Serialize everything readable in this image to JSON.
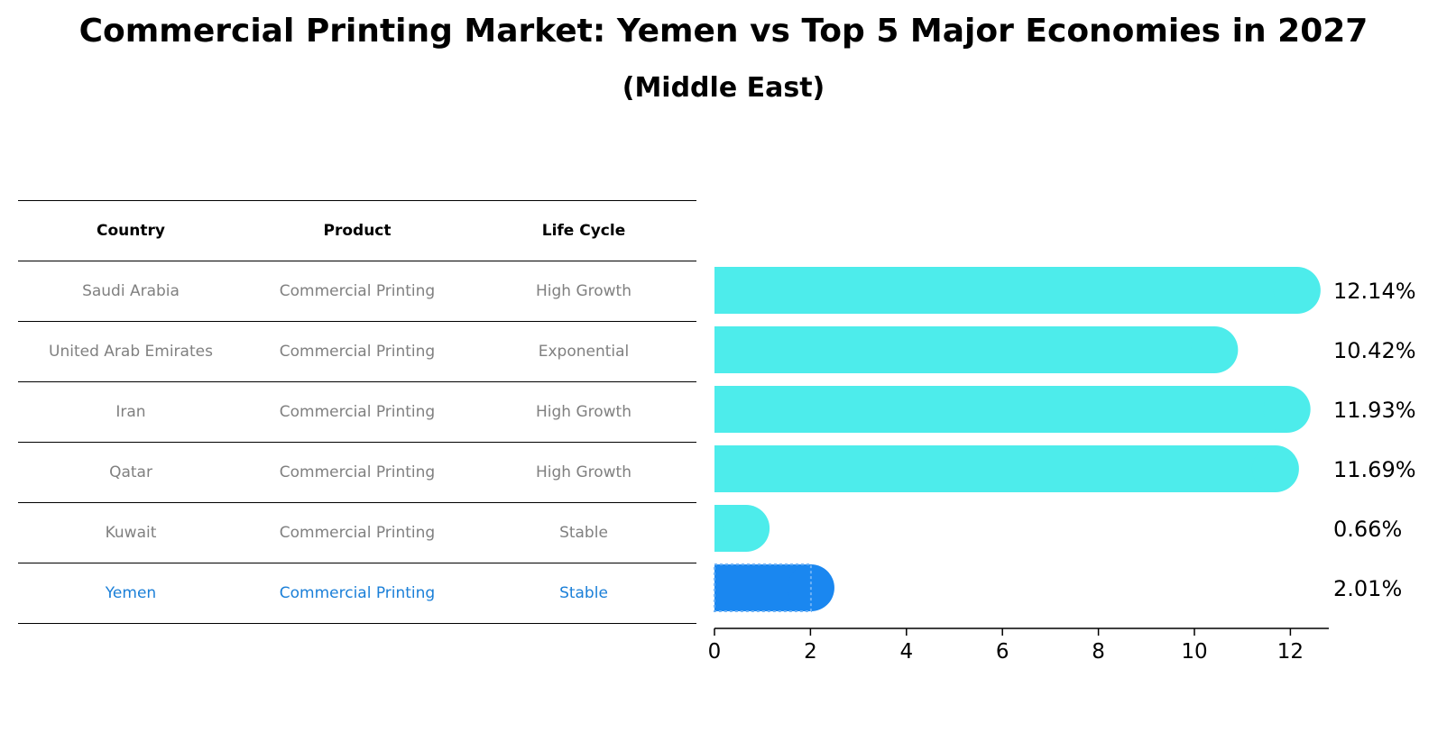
{
  "title": "Commercial Printing Market: Yemen vs Top 5 Major Economies in 2027",
  "subtitle": "(Middle East)",
  "colors": {
    "bar": "#4deceb",
    "highlight": "#1a87f0",
    "highlight_text": "#1a7fd8",
    "muted_text": "#808080"
  },
  "table": {
    "headers": [
      "Country",
      "Product",
      "Life Cycle"
    ],
    "rows": [
      [
        "Saudi Arabia",
        "Commercial Printing",
        "High Growth"
      ],
      [
        "United Arab Emirates",
        "Commercial Printing",
        "Exponential"
      ],
      [
        "Iran",
        "Commercial Printing",
        "High Growth"
      ],
      [
        "Qatar",
        "Commercial Printing",
        "High Growth"
      ],
      [
        "Kuwait",
        "Commercial Printing",
        "Stable"
      ],
      [
        "Yemen",
        "Commercial Printing",
        "Stable"
      ]
    ]
  },
  "chart_data": {
    "type": "bar",
    "orientation": "horizontal",
    "categories": [
      "Saudi Arabia",
      "United Arab Emirates",
      "Iran",
      "Qatar",
      "Kuwait",
      "Yemen"
    ],
    "values": [
      12.14,
      10.42,
      11.93,
      11.69,
      0.66,
      2.01
    ],
    "value_labels": [
      "12.14%",
      "10.42%",
      "11.93%",
      "11.69%",
      "0.66%",
      "2.01%"
    ],
    "highlight_index": 5,
    "xlim": [
      0,
      12.8
    ],
    "xticks": [
      0,
      2,
      4,
      6,
      8,
      10,
      12
    ],
    "xlabel": "",
    "ylabel": ""
  }
}
